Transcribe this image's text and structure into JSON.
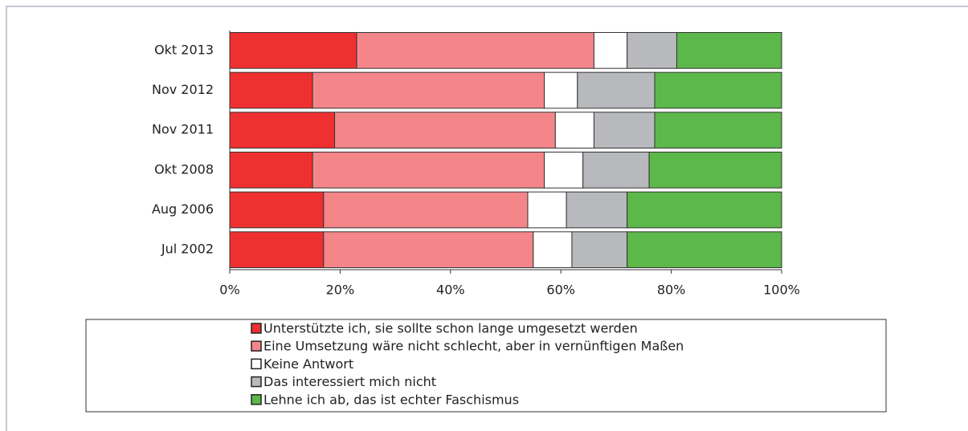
{
  "chart_data": {
    "type": "stacked-barh",
    "categories": [
      "Okt 2013",
      "Nov 2012",
      "Nov 2011",
      "Okt 2008",
      "Aug 2006",
      "Jul 2002"
    ],
    "series": [
      {
        "name": "Unterstützte ich, sie sollte schon lange umgesetzt werden",
        "color": "#ee3030",
        "values": [
          23,
          15,
          19,
          15,
          17,
          17
        ]
      },
      {
        "name": "Eine Umsetzung wäre nicht schlecht, aber in vernünftigen Maßen",
        "color": "#f4868a",
        "values": [
          43,
          42,
          40,
          42,
          37,
          38
        ]
      },
      {
        "name": "Keine Antwort",
        "color": "#ffffff",
        "values": [
          6,
          6,
          7,
          7,
          7,
          7
        ]
      },
      {
        "name": "Das interessiert mich nicht",
        "color": "#b8b9bc",
        "values": [
          9,
          14,
          11,
          12,
          11,
          10
        ]
      },
      {
        "name": "Lehne ich ab, das ist echter Faschismus",
        "color": "#5cb84a",
        "values": [
          19,
          23,
          23,
          24,
          28,
          28
        ]
      }
    ],
    "xlim": [
      0,
      100
    ],
    "xticks": [
      {
        "value": 0,
        "label": "0%"
      },
      {
        "value": 20,
        "label": "20%"
      },
      {
        "value": 40,
        "label": "40%"
      },
      {
        "value": 60,
        "label": "60%"
      },
      {
        "value": 80,
        "label": "80%"
      },
      {
        "value": 100,
        "label": "100%"
      }
    ],
    "legend": "bottom"
  }
}
